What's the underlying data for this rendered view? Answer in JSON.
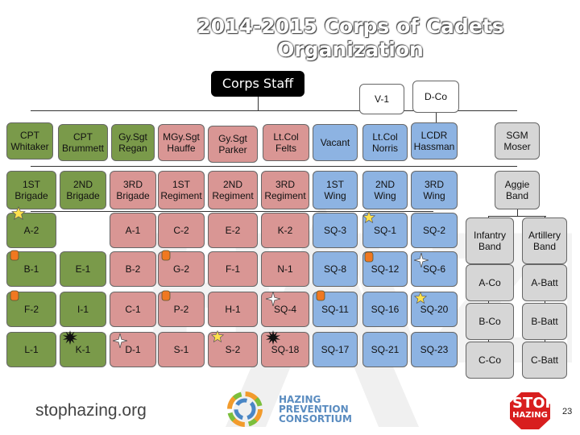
{
  "title": "2014-2015 Corps of Cadets Organization",
  "top": {
    "staff": "Corps Staff",
    "v1": "V-1",
    "dco": "D-Co"
  },
  "leaders": [
    "CPT\nWhitaker",
    "CPT\nBrummett",
    "Gy.Sgt\nRegan",
    "MGy.Sgt\nHauffe",
    "Gy.Sgt\nParker",
    "Lt.Col\nFelts",
    "Vacant",
    "Lt.Col\nNorris",
    "LCDR\nHassman",
    "SGM\nMoser"
  ],
  "units": [
    "1ST\nBrigade",
    "2ND\nBrigade",
    "3RD\nBrigade",
    "1ST\nRegiment",
    "2ND\nRegiment",
    "3RD\nRegiment",
    "1ST\nWing",
    "2ND\nWing",
    "3RD\nWing",
    "Aggie\nBand"
  ],
  "rows": [
    [
      "A-2",
      "",
      "A-1",
      "C-2",
      "E-2",
      "K-2",
      "SQ-3",
      "SQ-1",
      "SQ-2"
    ],
    [
      "B-1",
      "E-1",
      "B-2",
      "G-2",
      "F-1",
      "N-1",
      "SQ-8",
      "SQ-12",
      "SQ-6"
    ],
    [
      "F-2",
      "I-1",
      "C-1",
      "P-2",
      "H-1",
      "SQ-4",
      "SQ-11",
      "SQ-16",
      "SQ-20"
    ],
    [
      "L-1",
      "K-1",
      "D-1",
      "S-1",
      "S-2",
      "SQ-18",
      "SQ-17",
      "SQ-21",
      "SQ-23"
    ]
  ],
  "band": {
    "infantry": "Infantry\nBand",
    "artillery": "Artillery\nBand",
    "infantry_units": [
      "A-Co",
      "B-Co",
      "C-Co"
    ],
    "artillery_units": [
      "A-Batt",
      "B-Batt",
      "C-Batt"
    ]
  },
  "footer": {
    "website": "stophazing.org",
    "hpc_line1": "HAZING",
    "hpc_line2": "PREVENTION",
    "hpc_line3": "CONSORTIUM",
    "stop_line1": "STOP",
    "stop_line2": "HAZING",
    "page_number": "23"
  },
  "colors": {
    "green": "#7a9a4a",
    "red": "#d99694",
    "blue": "#8db3e2",
    "gray": "#d6d6d6"
  }
}
